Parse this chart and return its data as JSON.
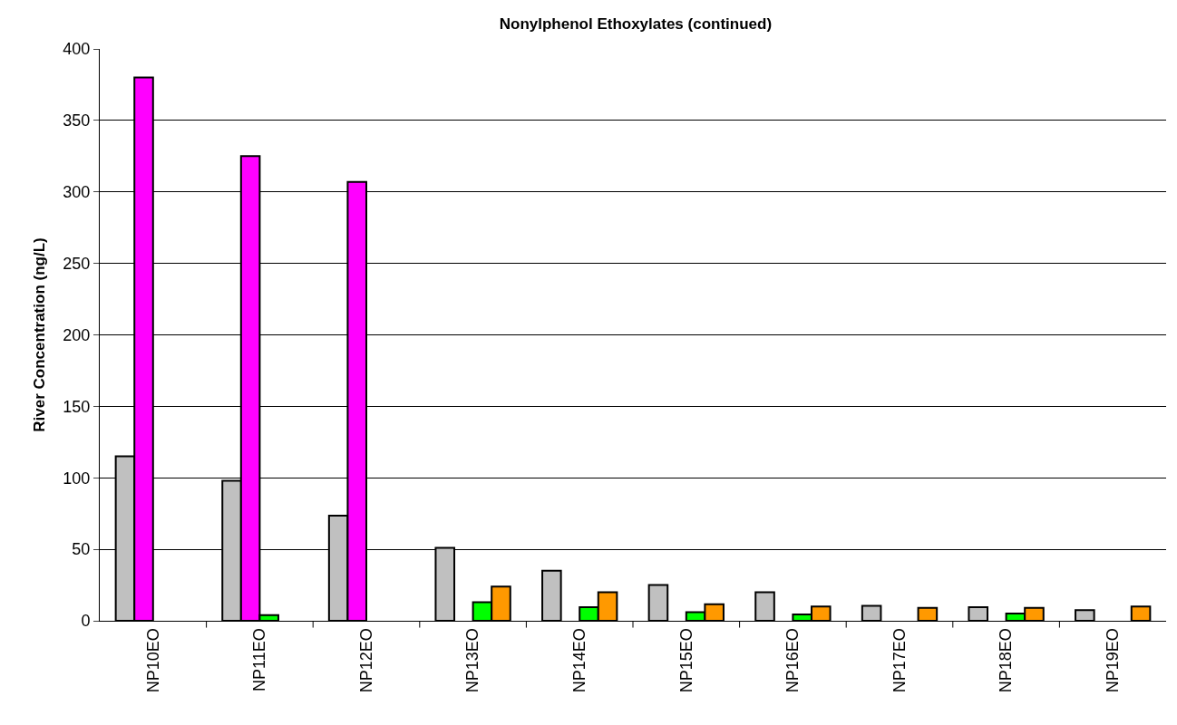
{
  "chart_data": {
    "type": "bar",
    "title": "Nonylphenol Ethoxylates (continued)",
    "ylabel": "River Concentration (ng/L)",
    "categories": [
      "NP10EO",
      "NP11EO",
      "NP12EO",
      "NP13EO",
      "NP14EO",
      "NP15EO",
      "NP16EO",
      "NP17EO",
      "NP18EO",
      "NP19EO"
    ],
    "series": [
      {
        "color": "#c0c0c0",
        "values": [
          115,
          98,
          73.5,
          51,
          35,
          25,
          20,
          10.5,
          9.5,
          7.5
        ]
      },
      {
        "color": "#ff00ff",
        "values": [
          380,
          325,
          307,
          null,
          null,
          null,
          null,
          null,
          null,
          null
        ]
      },
      {
        "color": "#00ff00",
        "values": [
          null,
          4,
          null,
          13,
          9.5,
          6,
          4.5,
          null,
          5,
          null
        ]
      },
      {
        "color": "#ff9900",
        "values": [
          null,
          null,
          null,
          24,
          20,
          11.5,
          10,
          9,
          9,
          10
        ]
      }
    ],
    "ylim": [
      0,
      400
    ],
    "yticks": [
      0,
      50,
      100,
      150,
      200,
      250,
      300,
      350,
      400
    ],
    "grid": "y"
  }
}
